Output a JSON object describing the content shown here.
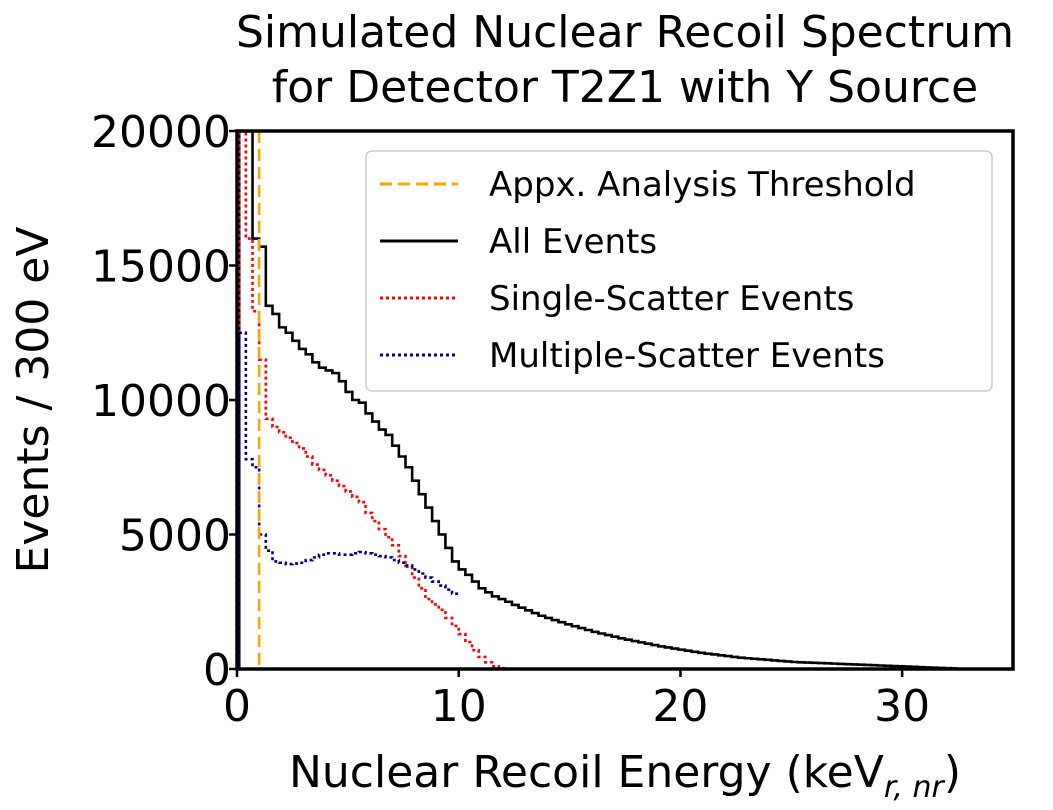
{
  "chart_data": {
    "type": "line",
    "title_lines": [
      "Simulated Nuclear Recoil Spectrum",
      "for Detector T2Z1 with Y Source"
    ],
    "xlabel": "Nuclear Recoil Energy (keV",
    "xlabel_sub": "r, nr",
    "xlabel_close": ")",
    "ylabel": "Events / 300 eV",
    "xlim": [
      0,
      35
    ],
    "ylim": [
      0,
      20000
    ],
    "xticks": [
      0,
      10,
      20,
      30
    ],
    "yticks": [
      0,
      5000,
      10000,
      15000,
      20000
    ],
    "grid": false,
    "legend_position": "top-right",
    "bin_width": 0.3,
    "bin_start": 0.1,
    "threshold": {
      "name": "Appx. Analysis Threshold",
      "x": 1.0,
      "color": "#ffa500",
      "style": "dashed"
    },
    "series": [
      {
        "name": "All Events",
        "color": "#000000",
        "style": "solid",
        "values": [
          22000,
          20000,
          16000,
          15700,
          13500,
          13200,
          12700,
          12500,
          12200,
          11900,
          11700,
          11400,
          11200,
          11100,
          11000,
          10700,
          10300,
          10000,
          9900,
          9500,
          9200,
          8900,
          8700,
          8300,
          7900,
          7500,
          7000,
          6500,
          6000,
          5500,
          5000,
          4500,
          4000,
          3700,
          3500,
          3250,
          3000,
          2850,
          2700,
          2600,
          2500,
          2380,
          2280,
          2180,
          2080,
          1980,
          1900,
          1820,
          1740,
          1660,
          1590,
          1520,
          1450,
          1380,
          1320,
          1260,
          1200,
          1140,
          1090,
          1040,
          990,
          940,
          890,
          840,
          800,
          760,
          720,
          680,
          640,
          600,
          570,
          540,
          510,
          480,
          450,
          420,
          400,
          380,
          360,
          340,
          320,
          300,
          280,
          260,
          250,
          240,
          230,
          220,
          210,
          200,
          190,
          180,
          170,
          160,
          150,
          140,
          130,
          120,
          110,
          100,
          90,
          80,
          70,
          60,
          50,
          40,
          30,
          20
        ]
      },
      {
        "name": "Single-Scatter Events",
        "color": "#ff0000",
        "style": "dotted",
        "values": [
          21000,
          16000,
          13300,
          11500,
          9300,
          9000,
          8800,
          8600,
          8400,
          8200,
          7900,
          7600,
          7400,
          7200,
          7000,
          6800,
          6600,
          6400,
          6200,
          5800,
          5500,
          5200,
          4900,
          4600,
          4200,
          3800,
          3400,
          3000,
          2600,
          2400,
          2200,
          1900,
          1600,
          1300,
          1000,
          700,
          450,
          250,
          100,
          30,
          5,
          0
        ]
      },
      {
        "name": "Multiple-Scatter Events",
        "color": "#00008b",
        "style": "dotted",
        "values": [
          12500,
          7800,
          7500,
          5000,
          4400,
          4000,
          3950,
          3900,
          3920,
          3950,
          4050,
          4150,
          4250,
          4300,
          4300,
          4250,
          4250,
          4300,
          4350,
          4300,
          4250,
          4200,
          4150,
          4050,
          3950,
          3850,
          3700,
          3550,
          3400,
          3250,
          3100,
          2950,
          2800
        ]
      }
    ]
  }
}
